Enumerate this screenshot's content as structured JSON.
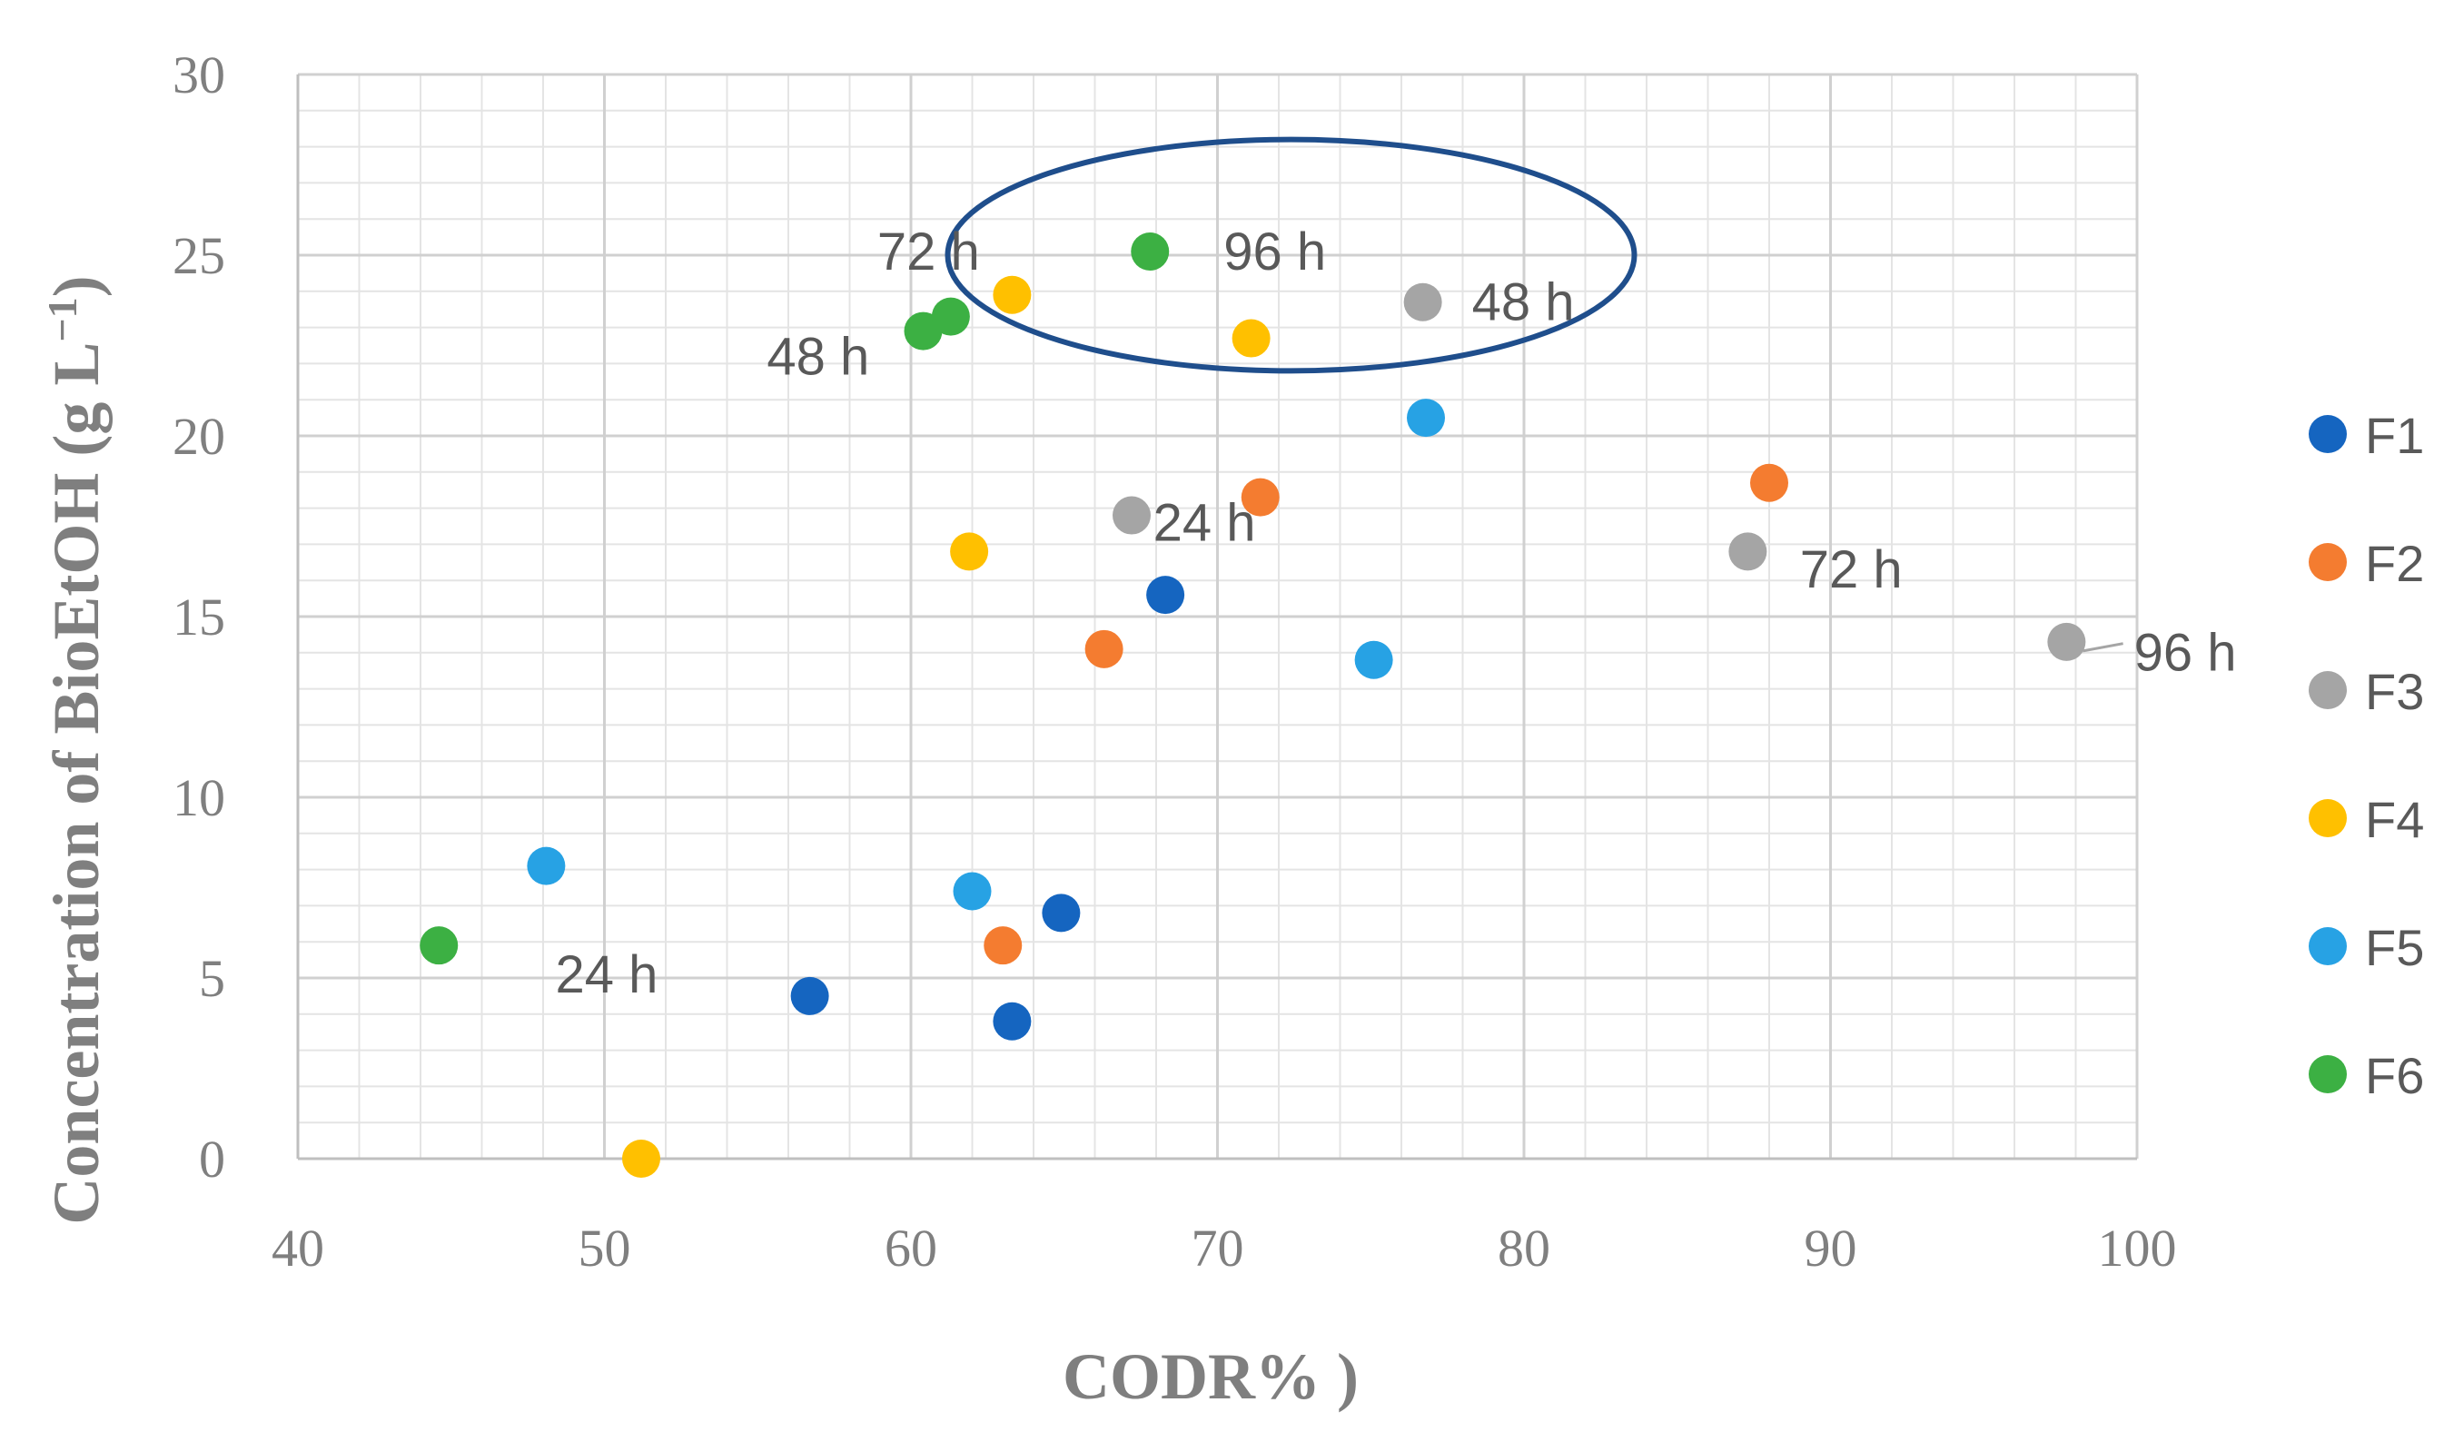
{
  "chart_data": {
    "type": "scatter",
    "xlabel": "CODR% )",
    "ylabel_main": "Concentration of  BioEtOH (g L",
    "ylabel_sup": "−1",
    "ylabel_close": ")",
    "xlim": [
      40,
      100
    ],
    "ylim": [
      0,
      30
    ],
    "xticks": [
      40,
      50,
      60,
      70,
      80,
      90,
      100
    ],
    "yticks": [
      0,
      5,
      10,
      15,
      20,
      25,
      30
    ],
    "grid": true,
    "legend_position": "right",
    "series": [
      {
        "name": "F1",
        "color": "#1565c0",
        "points": [
          [
            56.7,
            4.5
          ],
          [
            63.3,
            3.8
          ],
          [
            64.9,
            6.8
          ],
          [
            68.3,
            15.6
          ]
        ]
      },
      {
        "name": "F2",
        "color": "#f47c30",
        "points": [
          [
            63.0,
            5.9
          ],
          [
            66.3,
            14.1
          ],
          [
            71.4,
            18.3
          ],
          [
            88.0,
            18.7
          ]
        ]
      },
      {
        "name": "F3",
        "color": "#a5a5a5",
        "points": [
          [
            67.2,
            17.8
          ],
          [
            76.7,
            23.7
          ],
          [
            87.3,
            16.8
          ],
          [
            97.7,
            14.3
          ]
        ]
      },
      {
        "name": "F4",
        "color": "#ffc000",
        "points": [
          [
            51.2,
            0.0
          ],
          [
            61.9,
            16.8
          ],
          [
            63.3,
            23.9
          ],
          [
            71.1,
            22.7
          ]
        ]
      },
      {
        "name": "F5",
        "color": "#27a2e4",
        "points": [
          [
            48.1,
            8.1
          ],
          [
            62.0,
            7.4
          ],
          [
            75.1,
            13.8
          ],
          [
            76.8,
            20.5
          ]
        ]
      },
      {
        "name": "F6",
        "color": "#3cb043",
        "points": [
          [
            44.6,
            5.9
          ],
          [
            60.4,
            22.9
          ],
          [
            61.3,
            23.3
          ],
          [
            67.8,
            25.1
          ]
        ]
      }
    ],
    "annotations": [
      {
        "text": "24 h",
        "x": 48.4,
        "y": 4.6,
        "leader": false
      },
      {
        "text": "48 h",
        "x": 55.3,
        "y": 21.7,
        "leader": false
      },
      {
        "text": "72 h",
        "x": 58.9,
        "y": 24.6,
        "leader": false
      },
      {
        "text": "96 h",
        "x": 70.2,
        "y": 24.6,
        "leader": false
      },
      {
        "text": "24 h",
        "x": 67.9,
        "y": 17.1,
        "leader": false
      },
      {
        "text": "48 h",
        "x": 78.3,
        "y": 23.2,
        "leader": false
      },
      {
        "text": "72 h",
        "x": 89.0,
        "y": 15.8,
        "leader": false
      },
      {
        "text": "96 h",
        "x": 99.9,
        "y": 13.5,
        "leader": true,
        "from": [
          97.7,
          14.3
        ]
      }
    ],
    "highlight_ellipse": {
      "cx": 72.4,
      "cy": 25.0,
      "rx": 11.2,
      "ry": 3.2,
      "color": "#1f4e8c"
    }
  }
}
